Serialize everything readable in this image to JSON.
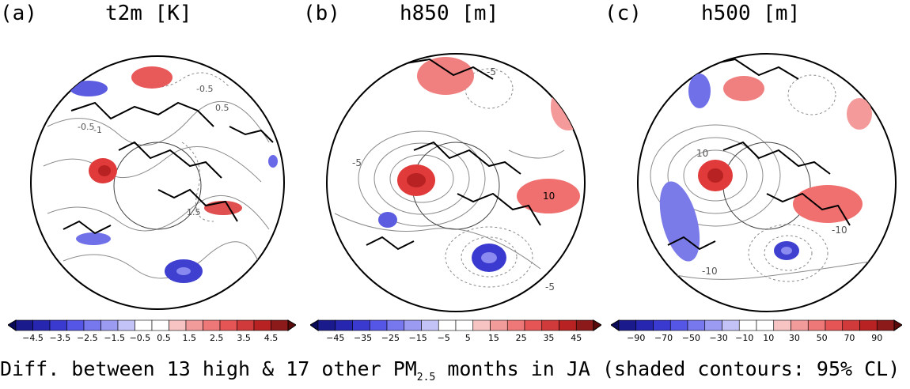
{
  "panels": [
    {
      "letter": "(a)",
      "title": "t2m [K]",
      "contour_labels": [
        "-0.5",
        "0.5",
        "-1",
        "-0.5",
        "1.5"
      ],
      "colorbar_ticks": [
        "−4.5",
        "−3.5",
        "−2.5",
        "−1.5",
        "−0.5",
        "0.5",
        "1.5",
        "2.5",
        "3.5",
        "4.5"
      ]
    },
    {
      "letter": "(b)",
      "title": "h850 [m]",
      "contour_labels": [
        "-5",
        "10",
        "-5",
        "-5"
      ],
      "colorbar_ticks": [
        "−45",
        "−35",
        "−25",
        "−15",
        "−5",
        "5",
        "15",
        "25",
        "35",
        "45"
      ]
    },
    {
      "letter": "(c)",
      "title": "h500 [m]",
      "contour_labels": [
        "10",
        "-10",
        "-10"
      ],
      "colorbar_ticks": [
        "−90",
        "−70",
        "−50",
        "−30",
        "−10",
        "10",
        "30",
        "50",
        "70",
        "90"
      ]
    }
  ],
  "caption": {
    "before_sub": "Diff. between 13 high & 17 other PM",
    "sub": "2.5",
    "after_sub": " months in JA (shaded contours: 95% CL)"
  },
  "colorbar_colors": [
    "#1a1a8c",
    "#2626b0",
    "#3a3ad0",
    "#5555e6",
    "#7777ee",
    "#9b9bf2",
    "#c3c3f7",
    "#ffffff",
    "#ffffff",
    "#f7c3c3",
    "#f29b9b",
    "#ee7777",
    "#e65555",
    "#d03a3a",
    "#b82222",
    "#8c1a1a"
  ]
}
